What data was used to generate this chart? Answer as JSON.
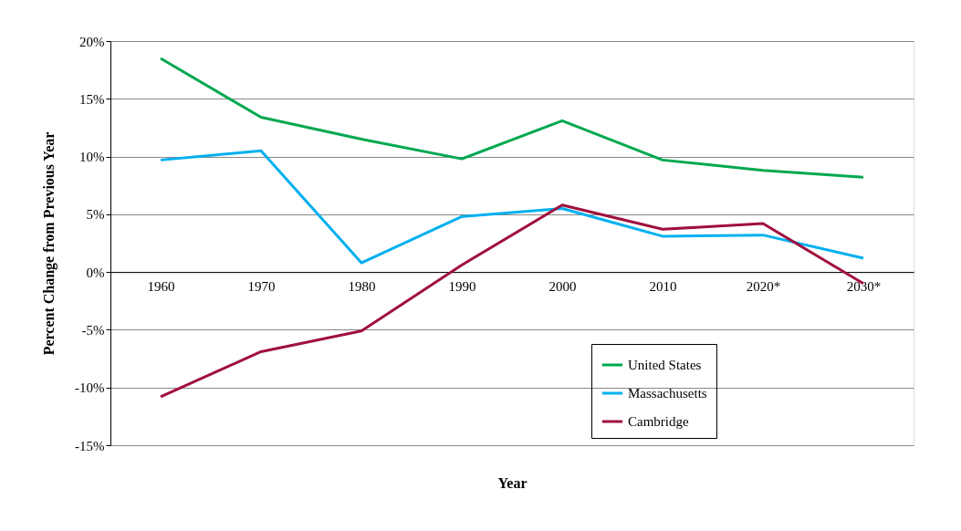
{
  "chart_data": {
    "type": "line",
    "xlabel": "Year",
    "ylabel": "Percent Change from Previous Year",
    "categories": [
      "1960",
      "1970",
      "1980",
      "1990",
      "2000",
      "2010",
      "2020*",
      "2030*"
    ],
    "series": [
      {
        "name": "United States",
        "color": "#00a84f",
        "values": [
          18.5,
          13.4,
          11.5,
          9.8,
          13.1,
          9.7,
          8.8,
          8.2
        ]
      },
      {
        "name": "Massachusetts",
        "color": "#00b0f0",
        "values": [
          9.7,
          10.5,
          0.8,
          4.8,
          5.5,
          3.1,
          3.2,
          1.2
        ]
      },
      {
        "name": "Cambridge",
        "color": "#a0103c",
        "values": [
          -10.8,
          -6.9,
          -5.1,
          0.6,
          5.8,
          3.7,
          4.2,
          -1.0
        ]
      }
    ],
    "ylim": [
      -15,
      20
    ],
    "yticks": [
      {
        "value": -15,
        "label": "-15%"
      },
      {
        "value": -10,
        "label": "-10%"
      },
      {
        "value": -5,
        "label": "-5%"
      },
      {
        "value": 0,
        "label": "0%"
      },
      {
        "value": 5,
        "label": "5%"
      },
      {
        "value": 10,
        "label": "10%"
      },
      {
        "value": 15,
        "label": "15%"
      },
      {
        "value": 20,
        "label": "20%"
      }
    ],
    "grid": "y",
    "legend": "bottom right",
    "marker": "none",
    "line_style": "solid"
  }
}
